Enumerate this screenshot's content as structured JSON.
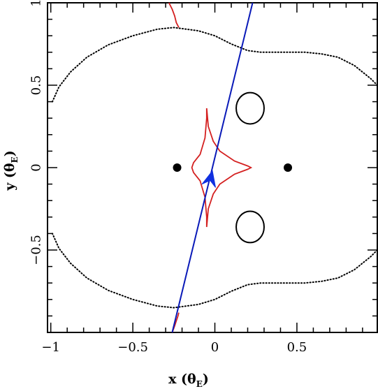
{
  "chart_data": {
    "type": "scatter",
    "title": "",
    "xlabel": {
      "main": "x (θ",
      "sub": "E",
      "close": ")"
    },
    "ylabel": {
      "main": "y (θ",
      "sub": "E",
      "close": ")"
    },
    "xlim": [
      -1.02,
      0.99
    ],
    "ylim": [
      -1.0,
      1.0
    ],
    "x_ticks": [
      -1,
      -0.5,
      0,
      0.5
    ],
    "x_tick_labels": [
      "−1",
      "−0.5",
      "0",
      "0.5"
    ],
    "y_ticks": [
      -0.5,
      0,
      0.5,
      1
    ],
    "y_tick_labels": [
      "−0.5",
      "0",
      "0.5",
      "1"
    ],
    "grid": false,
    "colors": {
      "critical_curve": "#000000",
      "caustic": "#d42020",
      "trajectory": "#0a1ab8",
      "arrow": "#1030e0",
      "lens": "#000000"
    },
    "lenses": [
      {
        "name": "lens-1",
        "x": -0.23,
        "y": 0.0
      },
      {
        "name": "lens-2",
        "x": 0.445,
        "y": 0.0
      }
    ],
    "critical_curve_outer": [
      [
        -0.99,
        0.4
      ],
      [
        -0.95,
        0.49
      ],
      [
        -0.88,
        0.58
      ],
      [
        -0.78,
        0.67
      ],
      [
        -0.65,
        0.745
      ],
      [
        -0.5,
        0.8
      ],
      [
        -0.35,
        0.84
      ],
      [
        -0.25,
        0.85
      ],
      [
        -0.1,
        0.83
      ],
      [
        0.0,
        0.8
      ],
      [
        0.1,
        0.75
      ],
      [
        0.2,
        0.71
      ],
      [
        0.28,
        0.7
      ],
      [
        0.34,
        0.7
      ],
      [
        0.38,
        0.7
      ],
      [
        0.45,
        0.7
      ],
      [
        0.55,
        0.7
      ],
      [
        0.65,
        0.69
      ],
      [
        0.75,
        0.67
      ],
      [
        0.85,
        0.62
      ],
      [
        0.95,
        0.54
      ],
      [
        0.99,
        0.5
      ],
      [
        0.99,
        -0.5
      ],
      [
        0.95,
        -0.54
      ],
      [
        0.85,
        -0.62
      ],
      [
        0.75,
        -0.67
      ],
      [
        0.65,
        -0.69
      ],
      [
        0.55,
        -0.7
      ],
      [
        0.45,
        -0.7
      ],
      [
        0.38,
        -0.7
      ],
      [
        0.34,
        -0.7
      ],
      [
        0.28,
        -0.7
      ],
      [
        0.2,
        -0.71
      ],
      [
        0.1,
        -0.75
      ],
      [
        0.0,
        -0.8
      ],
      [
        -0.1,
        -0.83
      ],
      [
        -0.25,
        -0.85
      ],
      [
        -0.35,
        -0.84
      ],
      [
        -0.5,
        -0.8
      ],
      [
        -0.65,
        -0.745
      ],
      [
        -0.78,
        -0.67
      ],
      [
        -0.88,
        -0.58
      ],
      [
        -0.95,
        -0.49
      ],
      [
        -0.99,
        -0.4
      ]
    ],
    "critical_curve_inner": [
      {
        "name": "upper-loop",
        "cx": 0.215,
        "cy": 0.36,
        "rx": 0.085,
        "ry": 0.095
      },
      {
        "name": "lower-loop",
        "cx": 0.215,
        "cy": -0.36,
        "rx": 0.085,
        "ry": 0.095
      }
    ],
    "caustic_central": [
      [
        -0.05,
        0.36
      ],
      [
        -0.04,
        0.25
      ],
      [
        -0.01,
        0.16
      ],
      [
        0.03,
        0.1
      ],
      [
        0.12,
        0.04
      ],
      [
        0.2,
        0.01
      ],
      [
        0.22,
        0.0
      ],
      [
        0.2,
        -0.01
      ],
      [
        0.12,
        -0.04
      ],
      [
        0.03,
        -0.1
      ],
      [
        -0.01,
        -0.16
      ],
      [
        -0.04,
        -0.25
      ],
      [
        -0.05,
        -0.36
      ],
      [
        -0.05,
        -0.3
      ],
      [
        -0.06,
        -0.18
      ],
      [
        -0.09,
        -0.08
      ],
      [
        -0.13,
        -0.03
      ],
      [
        -0.14,
        0.0
      ],
      [
        -0.13,
        0.03
      ],
      [
        -0.09,
        0.08
      ],
      [
        -0.06,
        0.18
      ],
      [
        -0.05,
        0.3
      ],
      [
        -0.05,
        0.36
      ]
    ],
    "caustic_top": [
      [
        -0.28,
        1.0
      ],
      [
        -0.26,
        0.96
      ],
      [
        -0.245,
        0.92
      ],
      [
        -0.235,
        0.88
      ],
      [
        -0.22,
        0.85
      ]
    ],
    "caustic_bottom": [
      [
        -0.26,
        -1.0
      ],
      [
        -0.245,
        -0.96
      ],
      [
        -0.235,
        -0.93
      ],
      [
        -0.225,
        -0.9
      ],
      [
        -0.22,
        -0.88
      ]
    ],
    "source_trajectory": {
      "x": [
        -0.26,
        0.23
      ],
      "y": [
        -1.0,
        1.0
      ]
    },
    "arrow": {
      "tip": [
        -0.015,
        -0.02
      ],
      "direction": [
        0.245,
        1.0
      ]
    }
  }
}
